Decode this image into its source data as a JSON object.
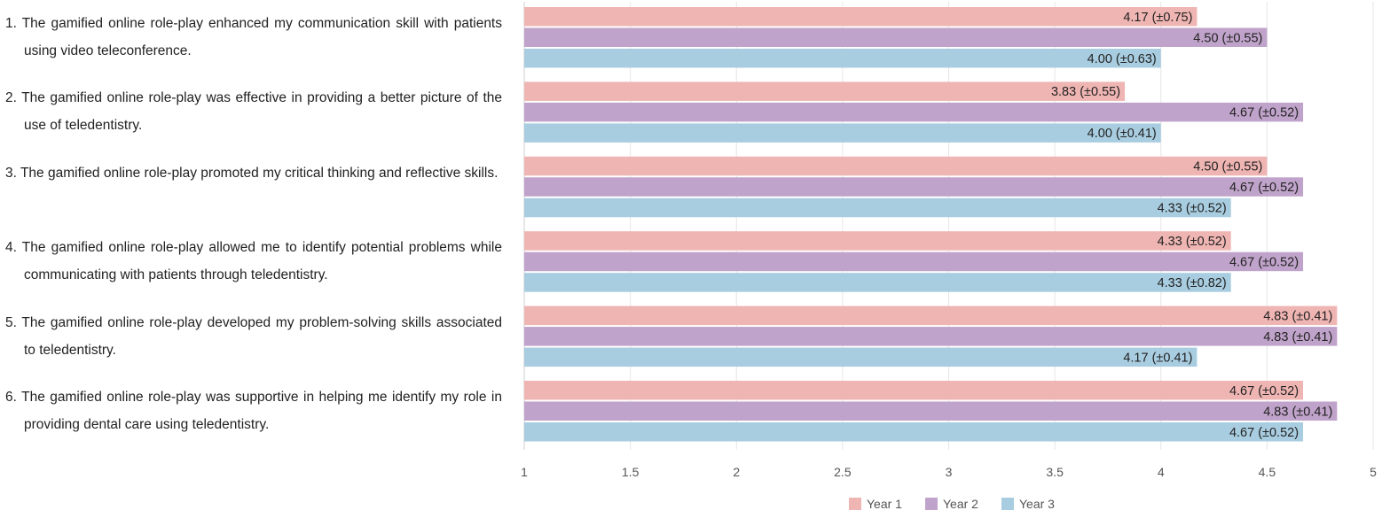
{
  "chart_data": {
    "type": "bar",
    "orientation": "horizontal",
    "categories": [
      "The gamified online role-play enhanced my communication skill with patients using video teleconference.",
      "The gamified online role-play was effective in providing a better picture of the use of teledentistry.",
      "The gamified online role-play promoted my critical thinking and reflective skills.",
      "The gamified online role-play allowed me to identify potential problems while communicating with patients through teledentistry.",
      "The gamified online role-play developed my problem-solving skills associated to teledentistry.",
      "The gamified online role-play was supportive in helping me identify my role in providing dental care using teledentistry."
    ],
    "category_numbers": [
      "1.",
      "2.",
      "3.",
      "4.",
      "5.",
      "6."
    ],
    "series": [
      {
        "name": "Year 1",
        "color": "#efb5b3",
        "values": [
          4.17,
          3.83,
          4.5,
          4.33,
          4.83,
          4.67
        ],
        "labels": [
          "4.17 (±0.75)",
          "3.83 (±0.55)",
          "4.50 (±0.55)",
          "4.33 (±0.52)",
          "4.83 (±0.41)",
          "4.67 (±0.52)"
        ]
      },
      {
        "name": "Year 2",
        "color": "#c0a3ca",
        "values": [
          4.5,
          4.67,
          4.67,
          4.67,
          4.83,
          4.83
        ],
        "labels": [
          "4.50 (±0.55)",
          "4.67 (±0.52)",
          "4.67 (±0.52)",
          "4.67 (±0.52)",
          "4.83 (±0.41)",
          "4.83 (±0.41)"
        ]
      },
      {
        "name": "Year 3",
        "color": "#a9cde0",
        "values": [
          4.0,
          4.0,
          4.33,
          4.33,
          4.17,
          4.67
        ],
        "labels": [
          "4.00 (±0.63)",
          "4.00 (±0.41)",
          "4.33 (±0.52)",
          "4.33 (±0.82)",
          "4.17 (±0.41)",
          "4.67 (±0.52)"
        ]
      }
    ],
    "xlim": [
      1,
      5
    ],
    "x_ticks": [
      1,
      1.5,
      2,
      2.5,
      3,
      3.5,
      4,
      4.5,
      5
    ],
    "x_tick_labels": [
      "1",
      "1.5",
      "2",
      "2.5",
      "3",
      "3.5",
      "4",
      "4.5",
      "5"
    ],
    "grid": true,
    "legend_position": "bottom-center",
    "title": "",
    "xlabel": "",
    "ylabel": ""
  }
}
